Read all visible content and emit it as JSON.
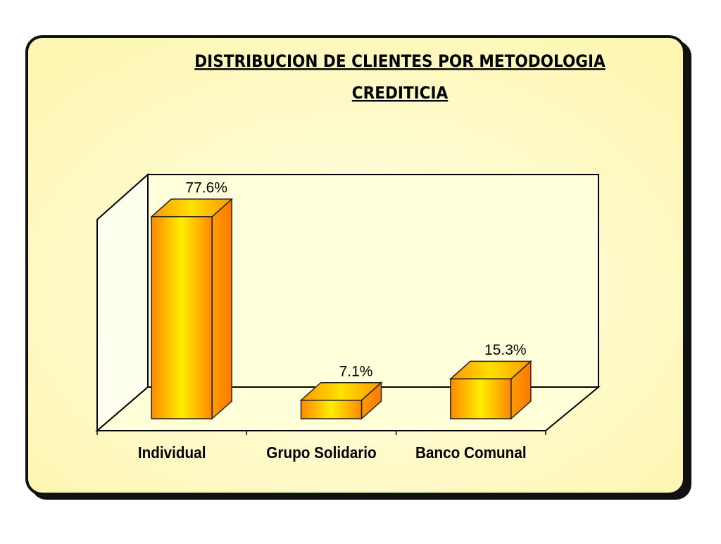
{
  "chart_data": {
    "type": "bar3d",
    "title": [
      "DISTRIBUCION DE CLIENTES POR METODOLOGIA",
      "CREDITICIA"
    ],
    "categories": [
      "Individual",
      "Grupo Solidario",
      "Banco Comunal"
    ],
    "values": [
      77.6,
      7.1,
      15.3
    ],
    "value_labels": [
      "77.6%",
      "7.1%",
      "15.3%"
    ],
    "color": "#ff9900"
  }
}
